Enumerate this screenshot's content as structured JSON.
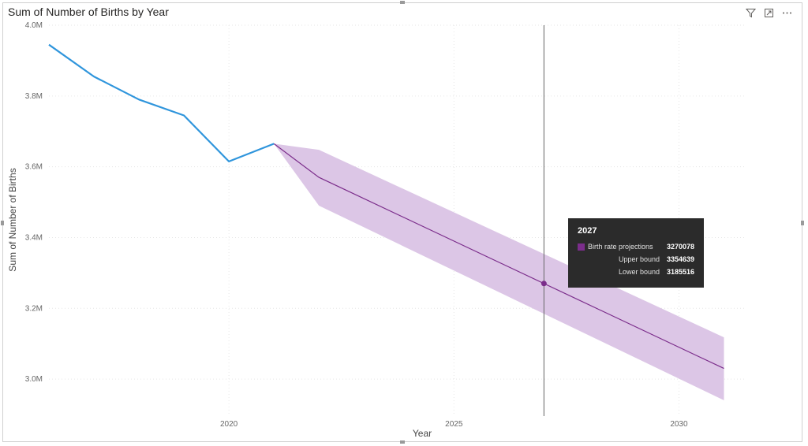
{
  "visual": {
    "title": "Sum of Number of Births by Year",
    "header_icons": [
      "filter-icon",
      "focus-mode-icon",
      "more-options-icon"
    ]
  },
  "chart_data": {
    "type": "line",
    "title": "Sum of Number of Births by Year",
    "xlabel": "Year",
    "ylabel": "Sum of Number of Births",
    "xlim": [
      2016,
      2031.5
    ],
    "ylim": [
      2.9,
      4.0
    ],
    "x_ticks": [
      2020,
      2025,
      2030
    ],
    "y_ticks": [
      {
        "value": 3.0,
        "label": "3.0M"
      },
      {
        "value": 3.2,
        "label": "3.2M"
      },
      {
        "value": 3.4,
        "label": "3.4M"
      },
      {
        "value": 3.6,
        "label": "3.6M"
      },
      {
        "value": 3.8,
        "label": "3.8M"
      },
      {
        "value": 4.0,
        "label": "4.0M"
      }
    ],
    "grid": true,
    "series": [
      {
        "x": [
          2016,
          2017,
          2018,
          2019,
          2020,
          2021
        ],
        "values": [
          3.945,
          3.855,
          3.79,
          3.745,
          3.615,
          3.665
        ],
        "color": "#2f95dc"
      },
      {
        "name": "Birth rate projections",
        "x": [
          2021,
          2022,
          2031
        ],
        "values": [
          3.665,
          3.57,
          3.03
        ],
        "upper": [
          3.665,
          3.648,
          3.118
        ],
        "lower": [
          3.665,
          3.49,
          2.94
        ],
        "color": "#7b2d8b",
        "band_color": "#dcc6e6"
      }
    ],
    "crosshair_x": 2027,
    "tooltip": {
      "year": "2027",
      "rows": [
        {
          "label": "Birth rate projections",
          "value": "3270078",
          "swatch": true
        },
        {
          "label": "Upper bound",
          "value": "3354639",
          "swatch": false
        },
        {
          "label": "Lower bound",
          "value": "3185516",
          "swatch": false
        }
      ],
      "point": {
        "x": 2027,
        "y": 3.270078
      }
    }
  }
}
